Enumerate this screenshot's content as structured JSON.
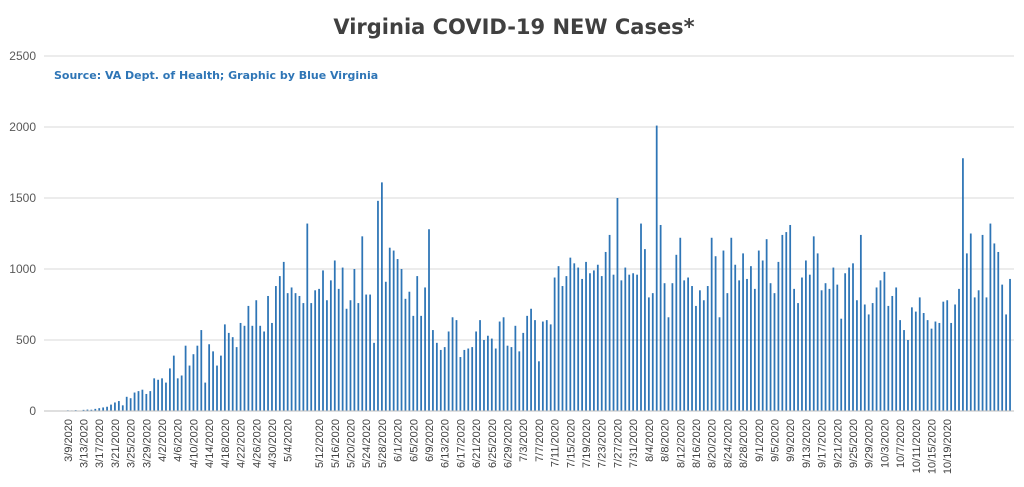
{
  "chart_data": {
    "type": "bar",
    "title": "Virginia COVID-19 NEW Cases*",
    "subtitle": "Source: VA Dept. of Health; Graphic by Blue Virginia",
    "xlabel": "",
    "ylabel": "",
    "ylim": [
      0,
      2500
    ],
    "yticks": [
      "0",
      "500",
      "1000",
      "1500",
      "2000",
      "2500"
    ],
    "grid": true,
    "bar_color": "#2e75b6",
    "start_date": "3/7/2020",
    "xtick_labels": [
      "3/9/2020",
      "3/13/2020",
      "3/17/2020",
      "3/21/2020",
      "3/25/2020",
      "3/29/2020",
      "4/2/2020",
      "4/6/2020",
      "4/10/2020",
      "4/14/2020",
      "4/18/2020",
      "4/22/2020",
      "4/26/2020",
      "4/30/2020",
      "5/4/2020",
      "5/12/2020",
      "5/16/2020",
      "5/20/2020",
      "5/24/2020",
      "5/28/2020",
      "6/1/2020",
      "6/5/2020",
      "6/9/2020",
      "6/13/2020",
      "6/17/2020",
      "6/21/2020",
      "6/25/2020",
      "6/29/2020",
      "7/3/2020",
      "7/7/2020",
      "7/11/2020",
      "7/15/2020",
      "7/19/2020",
      "7/23/2020",
      "7/27/2020",
      "7/31/2020",
      "8/4/2020",
      "8/8/2020",
      "8/12/2020",
      "8/16/2020",
      "8/20/2020",
      "8/24/2020",
      "8/28/2020",
      "9/1/2020",
      "9/5/2020",
      "9/9/2020",
      "9/13/2020",
      "9/17/2020",
      "9/21/2020",
      "9/25/2020",
      "9/29/2020",
      "10/3/2020",
      "10/7/2020",
      "10/11/2020",
      "10/15/2020",
      "10/19/2020"
    ],
    "values": [
      2,
      3,
      5,
      4,
      6,
      3,
      8,
      10,
      9,
      15,
      20,
      25,
      30,
      45,
      60,
      70,
      40,
      100,
      90,
      130,
      140,
      150,
      120,
      140,
      230,
      220,
      230,
      200,
      300,
      390,
      230,
      250,
      460,
      320,
      400,
      460,
      570,
      200,
      470,
      420,
      320,
      390,
      610,
      550,
      520,
      450,
      620,
      600,
      740,
      600,
      780,
      600,
      560,
      810,
      620,
      880,
      950,
      1050,
      830,
      870,
      830,
      810,
      760,
      1320,
      760,
      850,
      860,
      990,
      780,
      920,
      1060,
      860,
      1010,
      720,
      780,
      1000,
      760,
      1230,
      820,
      820,
      480,
      1480,
      1610,
      910,
      1150,
      1130,
      1070,
      1000,
      790,
      840,
      670,
      950,
      670,
      870,
      1280,
      570,
      480,
      430,
      450,
      560,
      660,
      640,
      380,
      430,
      440,
      450,
      560,
      640,
      500,
      530,
      510,
      440,
      630,
      660,
      460,
      450,
      600,
      420,
      550,
      670,
      720,
      640,
      350,
      630,
      640,
      610,
      940,
      1020,
      880,
      950,
      1080,
      1040,
      1010,
      930,
      1050,
      970,
      990,
      1030,
      950,
      1120,
      1240,
      960,
      1500,
      920,
      1010,
      960,
      970,
      960,
      1320,
      1140,
      800,
      830,
      2010,
      1310,
      900,
      660,
      900,
      1100,
      1220,
      920,
      940,
      880,
      740,
      850,
      780,
      880,
      1220,
      1090,
      660,
      1130,
      830,
      1220,
      1030,
      920,
      1110,
      930,
      1020,
      860,
      1130,
      1060,
      1210,
      900,
      830,
      1050,
      1240,
      1260,
      1310,
      860,
      760,
      940,
      1060,
      960,
      1230,
      1110,
      850,
      900,
      860,
      1010,
      890,
      650,
      970,
      1010,
      1040,
      780,
      1240,
      750,
      680,
      760,
      870,
      920,
      980,
      740,
      810,
      870,
      640,
      570,
      500,
      730,
      700,
      800,
      690,
      640,
      580,
      630,
      620,
      770,
      780,
      620,
      750,
      860,
      1780,
      1110,
      1250,
      800,
      850,
      1240,
      800,
      1320,
      1180,
      1120,
      890,
      680,
      930
    ]
  }
}
